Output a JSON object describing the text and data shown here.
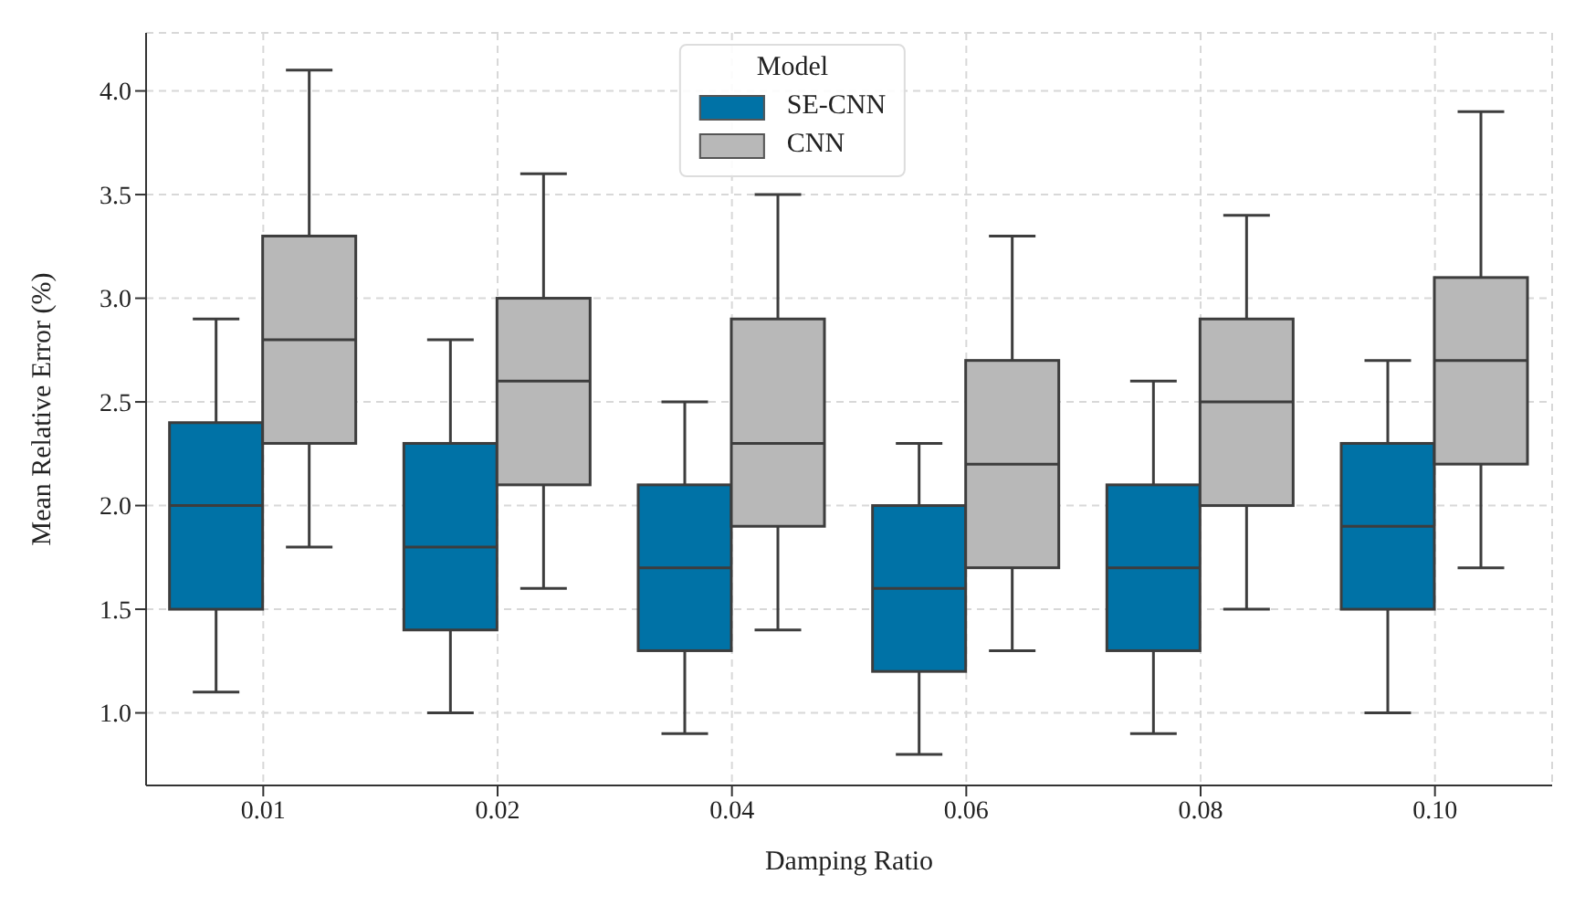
{
  "chart_data": {
    "type": "box",
    "xlabel": "Damping Ratio",
    "ylabel": "Mean Relative Error (%)",
    "legend_title": "Model",
    "categories": [
      "0.01",
      "0.02",
      "0.04",
      "0.06",
      "0.08",
      "0.10"
    ],
    "series": [
      {
        "name": "SE-CNN",
        "color": "#0072a6",
        "boxes": [
          {
            "low": 1.1,
            "q1": 1.5,
            "median": 2.0,
            "q3": 2.4,
            "high": 2.9
          },
          {
            "low": 1.0,
            "q1": 1.4,
            "median": 1.8,
            "q3": 2.3,
            "high": 2.8
          },
          {
            "low": 0.9,
            "q1": 1.3,
            "median": 1.7,
            "q3": 2.1,
            "high": 2.5
          },
          {
            "low": 0.8,
            "q1": 1.2,
            "median": 1.6,
            "q3": 2.0,
            "high": 2.3
          },
          {
            "low": 0.9,
            "q1": 1.3,
            "median": 1.7,
            "q3": 2.1,
            "high": 2.6
          },
          {
            "low": 1.0,
            "q1": 1.5,
            "median": 1.9,
            "q3": 2.3,
            "high": 2.7
          }
        ]
      },
      {
        "name": "CNN",
        "color": "#b8b8b8",
        "boxes": [
          {
            "low": 1.8,
            "q1": 2.3,
            "median": 2.8,
            "q3": 3.3,
            "high": 4.1
          },
          {
            "low": 1.6,
            "q1": 2.1,
            "median": 2.6,
            "q3": 3.0,
            "high": 3.6
          },
          {
            "low": 1.4,
            "q1": 1.9,
            "median": 2.3,
            "q3": 2.9,
            "high": 3.5
          },
          {
            "low": 1.3,
            "q1": 1.7,
            "median": 2.2,
            "q3": 2.7,
            "high": 3.3
          },
          {
            "low": 1.5,
            "q1": 2.0,
            "median": 2.5,
            "q3": 2.9,
            "high": 3.4
          },
          {
            "low": 1.7,
            "q1": 2.2,
            "median": 2.7,
            "q3": 3.1,
            "high": 3.9
          }
        ]
      }
    ],
    "ylim": [
      0.65,
      4.28
    ],
    "yticks": [
      {
        "value": 1,
        "label": "1.0"
      },
      {
        "value": 1.5,
        "label": "1.5"
      },
      {
        "value": 2,
        "label": "2.0"
      },
      {
        "value": 2.5,
        "label": "2.5"
      },
      {
        "value": 3,
        "label": "3.0"
      },
      {
        "value": 3.5,
        "label": "3.5"
      },
      {
        "value": 4,
        "label": "4.0"
      }
    ],
    "grid": true,
    "legend": "top"
  }
}
